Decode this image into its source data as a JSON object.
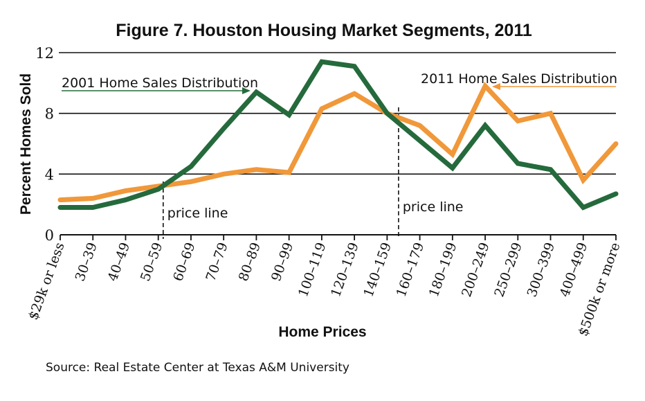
{
  "chart_data": {
    "type": "line",
    "title": "Figure 7. Houston Housing Market Segments, 2011",
    "xlabel": "Home Prices",
    "ylabel": "Percent Homes Sold",
    "ylim": [
      0,
      12
    ],
    "yticks": [
      "0",
      "4",
      "8",
      "12"
    ],
    "ytick_values": [
      0,
      4,
      8,
      12
    ],
    "grid": true,
    "categories": [
      "$29k or less",
      "30–39",
      "40–49",
      "50–59",
      "60–69",
      "70–79",
      "80–89",
      "90–99",
      "100–119",
      "120–139",
      "140–159",
      "160–179",
      "180–199",
      "200–249",
      "250–299",
      "300–399",
      "400–499",
      "$500k or more"
    ],
    "series": [
      {
        "name": "2001 Home Sales Distribution",
        "color": "#256a3c",
        "values": [
          1.8,
          1.8,
          2.3,
          3.0,
          4.5,
          7.0,
          9.4,
          7.9,
          11.4,
          11.1,
          8.0,
          6.2,
          4.4,
          7.2,
          4.7,
          4.3,
          1.8,
          2.7
        ]
      },
      {
        "name": "2011 Home Sales Distribution",
        "color": "#f0983a",
        "values": [
          2.3,
          2.4,
          2.9,
          3.2,
          3.5,
          4.0,
          4.3,
          4.1,
          8.3,
          9.3,
          8.0,
          7.2,
          5.3,
          9.8,
          7.5,
          8.0,
          3.6,
          6.0
        ]
      }
    ],
    "annotations": [
      {
        "text": "2001 Home Sales Distribution",
        "series": 0,
        "arrow_to_category": "80–89",
        "arrow_direction": "right"
      },
      {
        "text": "2011 Home Sales Distribution",
        "series": 1,
        "arrow_to_category": "200–249",
        "arrow_direction": "left"
      },
      {
        "text": "price line",
        "between_categories": [
          "50–59",
          "60–69"
        ]
      },
      {
        "text": "price line",
        "between_categories": [
          "140–159",
          "160–179"
        ]
      }
    ],
    "price_lines": [
      {
        "label": "price line",
        "position_category_index": 3.15
      },
      {
        "label": "price line",
        "position_category_index": 10.35
      }
    ],
    "source": "Source: Real Estate Center at Texas A&M University"
  }
}
